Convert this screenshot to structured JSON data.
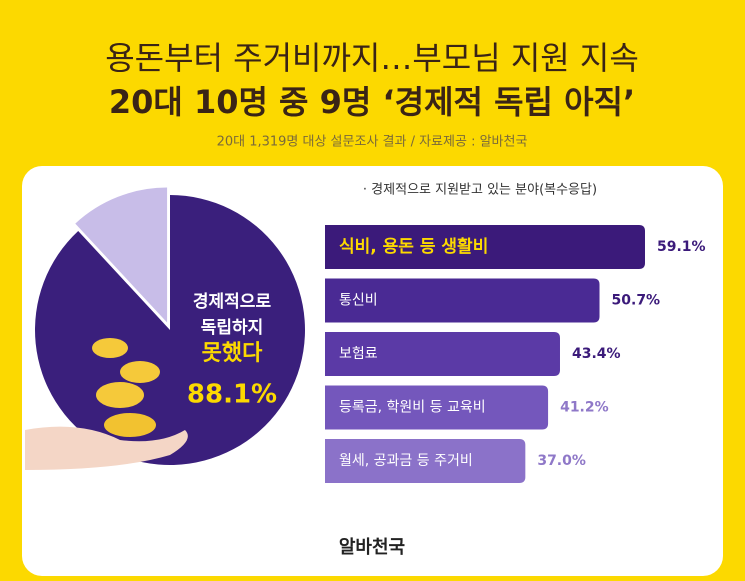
{
  "header": {
    "title_line1": "용돈부터 주거비까지…부모님 지원 지속",
    "title_line2": "20대 10명 중 9명 ‘경제적 독립 아직’",
    "subtitle": "20대 1,319명 대상 설문조사 결과 / 자료제공 : 알바천국"
  },
  "chart_data": [
    {
      "type": "pie",
      "categories": [
        "경제적으로 독립하지 못했다",
        null
      ],
      "label_lines": [
        "경제적으로",
        "독립하지",
        "못했다"
      ],
      "values": [
        88.1,
        11.9
      ],
      "value_labels": [
        "88.1%",
        null
      ],
      "colors": [
        "#3a1f7c",
        "#c8bde8"
      ]
    },
    {
      "type": "bar",
      "title": "· 경제적으로 지원받고 있는 분야(복수응답)",
      "categories": [
        "식비, 용돈 등 생활비",
        "통신비",
        "보험료",
        "등록금, 학원비 등 교육비",
        "월세, 공과금 등 주거비"
      ],
      "values": [
        59.1,
        50.7,
        43.4,
        41.2,
        37.0
      ],
      "value_labels": [
        "59.1%",
        "50.7%",
        "43.4%",
        "41.2%",
        "37.0%"
      ],
      "colors": [
        "#3b1a7a",
        "#4a2a94",
        "#5b3aa6",
        "#7457bc",
        "#8b72c9"
      ],
      "label_colors": [
        "#3b1a7a",
        "#3b1a7a",
        "#3b1a7a",
        "#8f78c8",
        "#8f78c8"
      ]
    }
  ],
  "footer": {
    "logo": "알바천국"
  }
}
